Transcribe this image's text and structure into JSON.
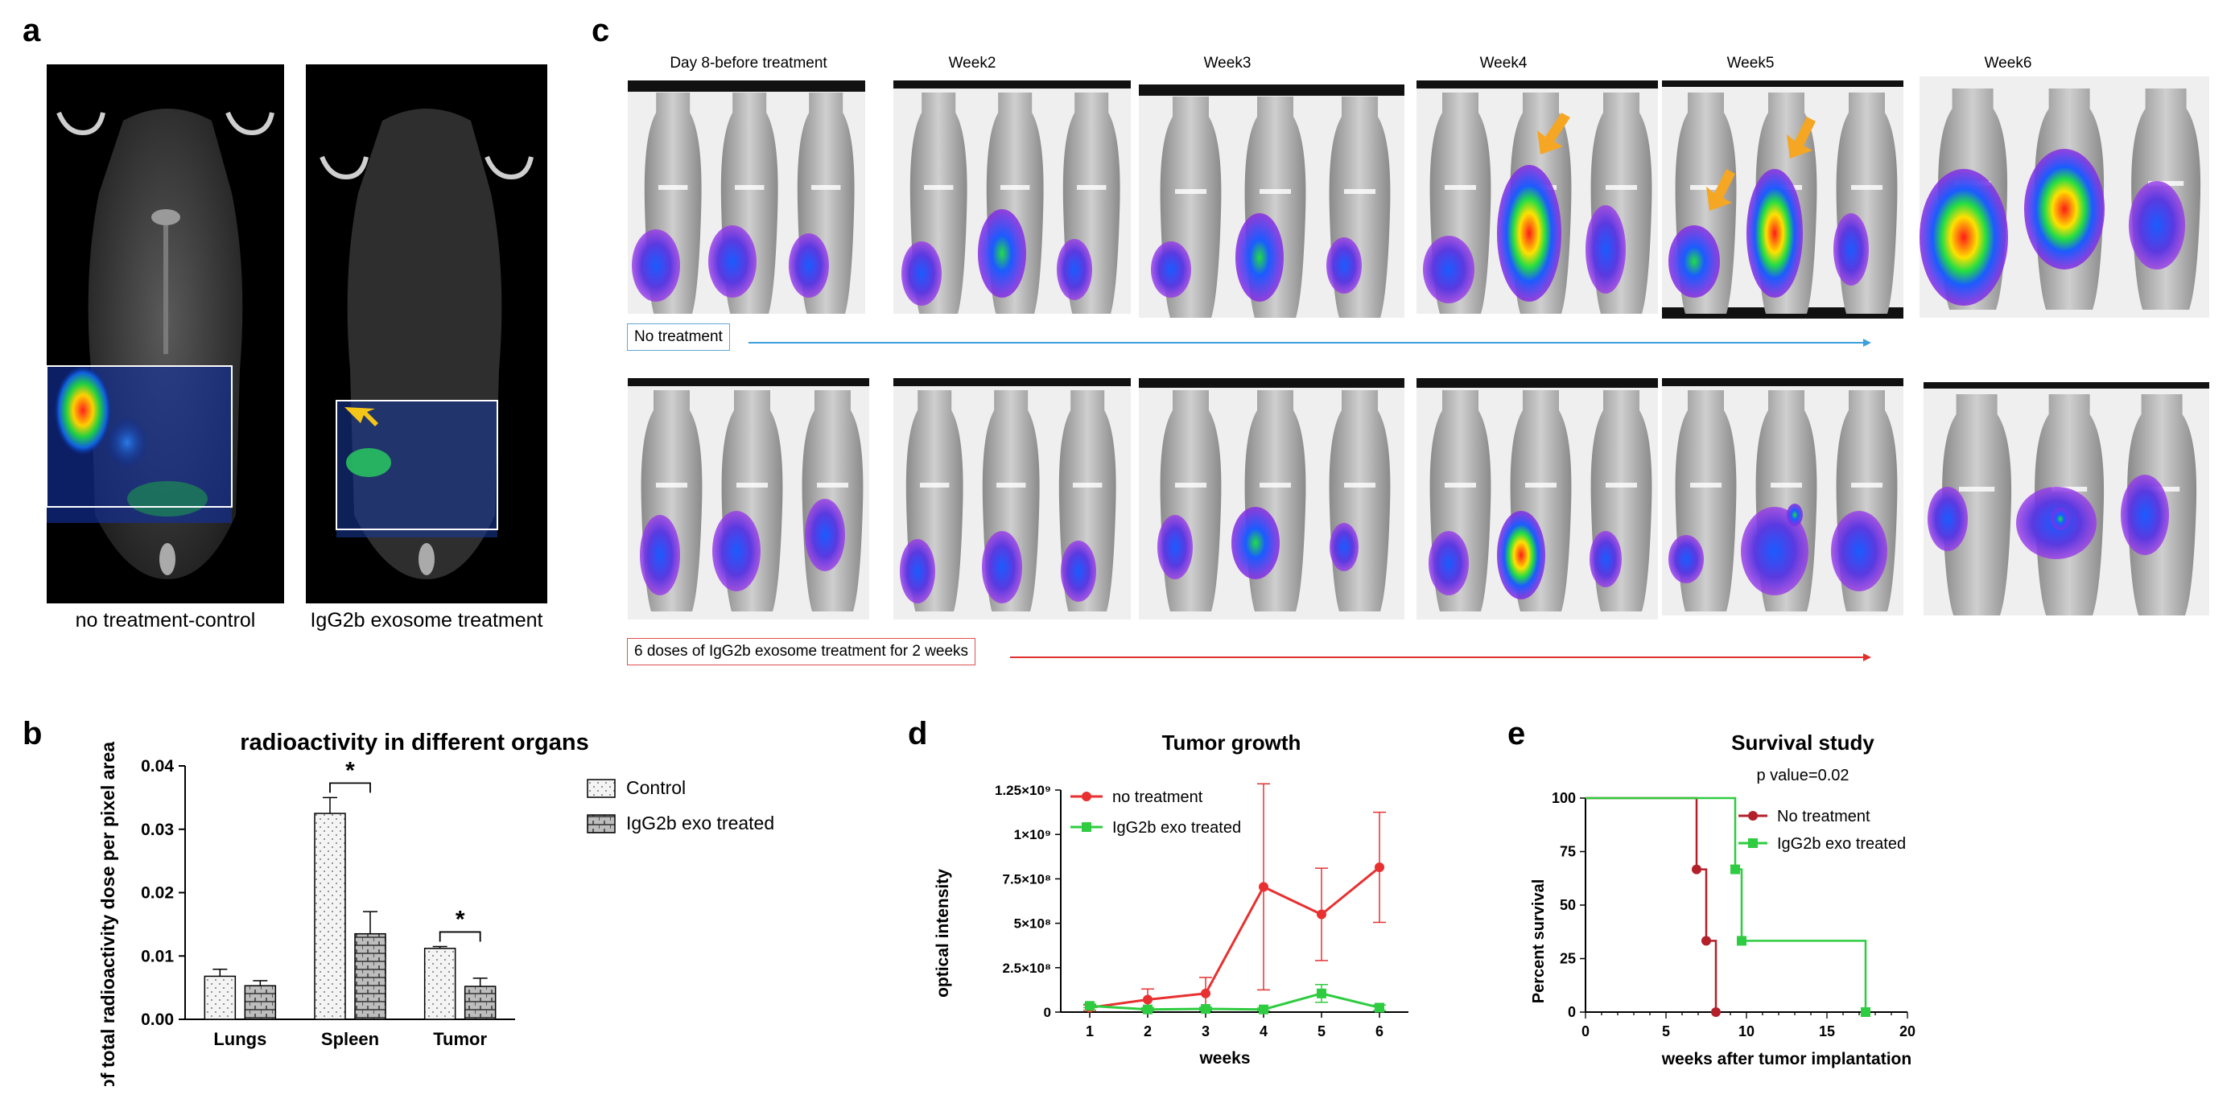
{
  "panel_labels": {
    "a": "a",
    "b": "b",
    "c": "c",
    "d": "d",
    "e": "e"
  },
  "panel_a": {
    "left_caption": "no treatment-control",
    "right_caption": "IgG2b exosome treatment"
  },
  "panel_c": {
    "week_labels": [
      "Day 8-before treatment",
      "Week2",
      "Week3",
      "Week4",
      "Week5",
      "Week6"
    ],
    "row1_label": "No treatment",
    "row2_label": "6 doses of IgG2b exosome treatment for 2 weeks",
    "colors": {
      "row1_border": "#5fa8d3",
      "row2_border": "#e05050",
      "arrow1": "#3ba0dc",
      "arrow2": "#e03030",
      "marker": "#f5a623"
    }
  },
  "chart_data": [
    {
      "id": "b",
      "type": "bar",
      "title": "radioactivity in different organs",
      "ylabel": "% of total radioactivity dose per pixel area",
      "ylim": [
        0,
        0.04
      ],
      "yticks": [
        "0.00",
        "0.01",
        "0.02",
        "0.03",
        "0.04"
      ],
      "categories": [
        "Lungs",
        "Spleen",
        "Tumor"
      ],
      "series": [
        {
          "name": "Control",
          "values": [
            0.0068,
            0.0325,
            0.0112
          ],
          "errors": [
            0.0011,
            0.0025,
            0.0003
          ]
        },
        {
          "name": "IgG2b exo treated",
          "values": [
            0.0053,
            0.0135,
            0.0052
          ],
          "errors": [
            0.0008,
            0.0035,
            0.0013
          ]
        }
      ],
      "significance": [
        "*",
        "*"
      ],
      "legend_position": "right"
    },
    {
      "id": "d",
      "type": "line",
      "title": "Tumor growth",
      "xlabel": "weeks",
      "ylabel": "optical intensity",
      "x": [
        1,
        2,
        3,
        4,
        5,
        6
      ],
      "ylim": [
        0,
        1250000000.0
      ],
      "yticks": [
        "0",
        "2.5×10⁸",
        "5×10⁸",
        "7.5×10⁸",
        "1×10⁹",
        "1.25×10⁹"
      ],
      "xticks": [
        "1",
        "2",
        "3",
        "4",
        "5",
        "6"
      ],
      "series": [
        {
          "name": "no treatment",
          "color": "#e83030",
          "values": [
            25000000.0,
            70000000.0,
            105000000.0,
            705000000.0,
            550000000.0,
            815000000.0
          ],
          "errors": [
            15000000.0,
            60000000.0,
            90000000.0,
            580000000.0,
            260000000.0,
            310000000.0
          ]
        },
        {
          "name": "IgG2b exo treated",
          "color": "#2ecc40",
          "values": [
            35000000.0,
            15000000.0,
            18000000.0,
            15000000.0,
            105000000.0,
            25000000.0
          ],
          "errors": [
            10000000.0,
            10000000.0,
            10000000.0,
            8000000.0,
            50000000.0,
            15000000.0
          ]
        }
      ],
      "legend_position": "top-left"
    },
    {
      "id": "e",
      "type": "line",
      "title": "Survival study",
      "subtitle": "p value=0.02",
      "xlabel": "weeks after tumor implantation",
      "ylabel": "Percent survival",
      "xlim": [
        0,
        20
      ],
      "ylim": [
        0,
        100
      ],
      "xticks": [
        "0",
        "5",
        "10",
        "15",
        "20"
      ],
      "yticks": [
        "0",
        "25",
        "50",
        "75",
        "100"
      ],
      "series": [
        {
          "name": "No treatment",
          "color": "#b3202a",
          "steps": [
            [
              0,
              100
            ],
            [
              6.9,
              100
            ],
            [
              6.9,
              66.7
            ],
            [
              7.5,
              66.7
            ],
            [
              7.5,
              33.3
            ],
            [
              8.1,
              33.3
            ],
            [
              8.1,
              0
            ]
          ],
          "points": [
            [
              6.9,
              66.7
            ],
            [
              7.5,
              33.3
            ],
            [
              8.1,
              0
            ]
          ]
        },
        {
          "name": "IgG2b exo treated",
          "color": "#2ecc40",
          "steps": [
            [
              0,
              100
            ],
            [
              9.3,
              100
            ],
            [
              9.3,
              66.7
            ],
            [
              9.7,
              66.7
            ],
            [
              9.7,
              33.3
            ],
            [
              17.4,
              33.3
            ],
            [
              17.4,
              0
            ]
          ],
          "points": [
            [
              9.3,
              66.7
            ],
            [
              9.7,
              33.3
            ],
            [
              17.4,
              0
            ]
          ]
        }
      ],
      "legend_position": "top-right"
    }
  ]
}
